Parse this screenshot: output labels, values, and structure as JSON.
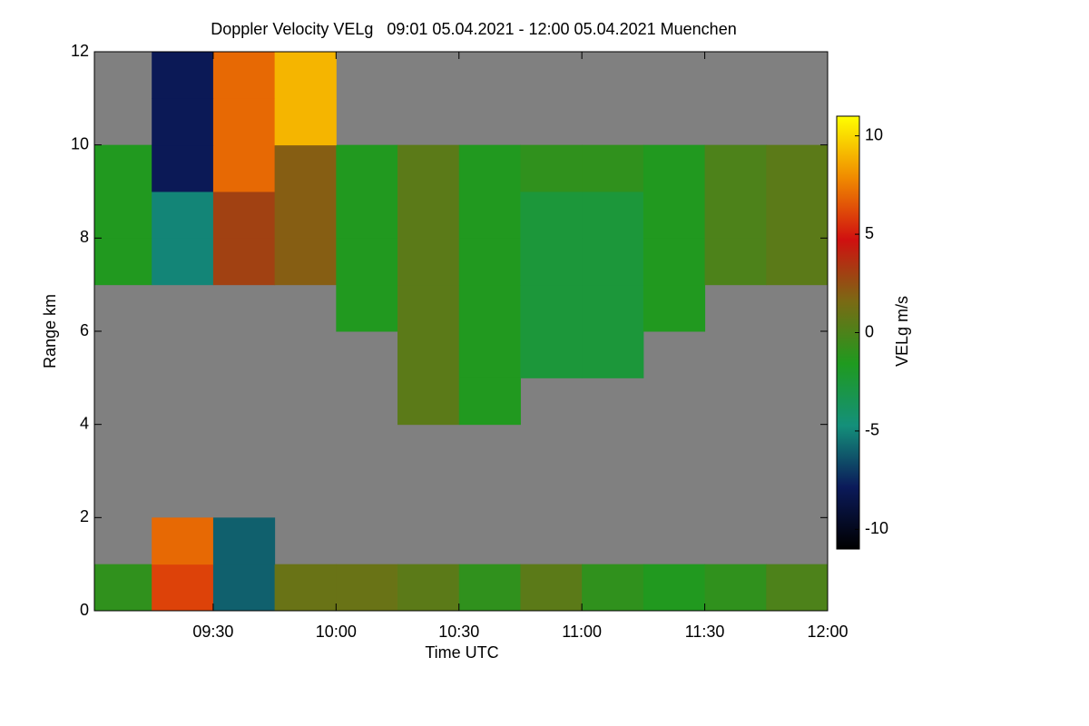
{
  "chart_data": {
    "type": "heatmap",
    "title": "Doppler Velocity VELg   09:01 05.04.2021 - 12:00 05.04.2021 Muenchen",
    "x_label": "Time UTC",
    "y_label": "Range km",
    "colorbar_label": "VELg m/s",
    "x": [
      541,
      555,
      570,
      585,
      600,
      615,
      630,
      645,
      660,
      675,
      690,
      705,
      720
    ],
    "y": [
      0,
      1,
      2,
      3,
      4,
      5,
      6,
      7,
      8,
      9,
      10,
      11,
      12
    ],
    "z": [
      [
        -1,
        6,
        -6,
        1,
        1,
        0.5,
        -1,
        0.5,
        -1,
        -1.5,
        -1,
        0
      ],
      [
        null,
        7,
        -6,
        null,
        null,
        null,
        null,
        null,
        null,
        null,
        null,
        null
      ],
      [
        null,
        null,
        null,
        null,
        null,
        null,
        null,
        null,
        null,
        null,
        null,
        null
      ],
      [
        null,
        null,
        null,
        null,
        null,
        null,
        null,
        null,
        null,
        null,
        null,
        null
      ],
      [
        null,
        null,
        null,
        null,
        null,
        0.5,
        -1.5,
        null,
        null,
        null,
        null,
        null
      ],
      [
        null,
        null,
        null,
        null,
        null,
        0.5,
        -1.5,
        -2.5,
        -2.5,
        null,
        null,
        null
      ],
      [
        null,
        null,
        null,
        null,
        -1.5,
        0.5,
        -1.5,
        -2.5,
        -2.5,
        -1.5,
        null,
        null
      ],
      [
        -1.5,
        -5,
        3,
        2,
        -1.5,
        0.5,
        -1.5,
        -2.5,
        -2.5,
        -1.5,
        0,
        0.5
      ],
      [
        -1.5,
        -5,
        3,
        2,
        -1.5,
        0.5,
        -1.5,
        -2.5,
        -2.5,
        -1.5,
        0,
        0.5
      ],
      [
        -1.5,
        -8,
        7,
        2,
        -1.5,
        0.5,
        -1.5,
        -1,
        -1,
        -1.5,
        0,
        0.5
      ],
      [
        null,
        -8,
        7,
        9,
        null,
        null,
        null,
        null,
        null,
        null,
        null,
        null
      ],
      [
        null,
        -8,
        7,
        9,
        null,
        null,
        null,
        null,
        null,
        null,
        null,
        null
      ]
    ],
    "xlim": [
      541,
      720
    ],
    "xticks": [
      {
        "value": 570,
        "label": "09:30"
      },
      {
        "value": 600,
        "label": "10:00"
      },
      {
        "value": 630,
        "label": "10:30"
      },
      {
        "value": 660,
        "label": "11:00"
      },
      {
        "value": 690,
        "label": "11:30"
      },
      {
        "value": 720,
        "label": "12:00"
      }
    ],
    "ylim": [
      0,
      12
    ],
    "yticks": [
      0,
      2,
      4,
      6,
      8,
      10,
      12
    ],
    "zlim": [
      -11,
      11
    ],
    "zticks": [
      -10,
      -5,
      0,
      5,
      10
    ],
    "missing_color": "#808080",
    "colormap": [
      "#000000",
      "#0b1a5a",
      "#14907a",
      "#1f9a1f",
      "#7a6a14",
      "#d01010",
      "#f08a00",
      "#ffff00"
    ]
  }
}
